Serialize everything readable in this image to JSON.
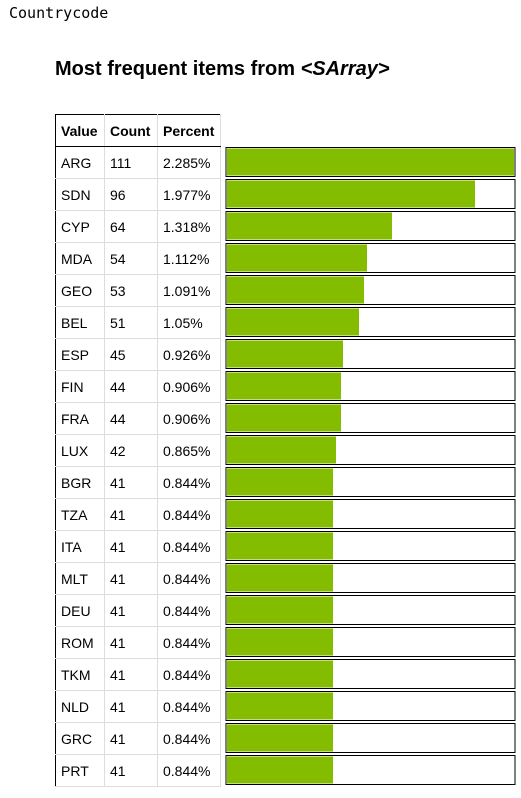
{
  "cell_output_label": "Countrycode",
  "heading": {
    "prefix": "Most frequent items from ",
    "type_name": "<SArray>"
  },
  "columns": {
    "value": "Value",
    "count": "Count",
    "percent": "Percent"
  },
  "bar_color": "#84bc00",
  "chart_data": {
    "type": "table",
    "columns": [
      "Value",
      "Count",
      "Percent"
    ],
    "rows": [
      {
        "value": "ARG",
        "count": 111,
        "percent": "2.285%"
      },
      {
        "value": "SDN",
        "count": 96,
        "percent": "1.977%"
      },
      {
        "value": "CYP",
        "count": 64,
        "percent": "1.318%"
      },
      {
        "value": "MDA",
        "count": 54,
        "percent": "1.112%"
      },
      {
        "value": "GEO",
        "count": 53,
        "percent": "1.091%"
      },
      {
        "value": "BEL",
        "count": 51,
        "percent": "1.05%"
      },
      {
        "value": "ESP",
        "count": 45,
        "percent": "0.926%"
      },
      {
        "value": "FIN",
        "count": 44,
        "percent": "0.906%"
      },
      {
        "value": "FRA",
        "count": 44,
        "percent": "0.906%"
      },
      {
        "value": "LUX",
        "count": 42,
        "percent": "0.865%"
      },
      {
        "value": "BGR",
        "count": 41,
        "percent": "0.844%"
      },
      {
        "value": "TZA",
        "count": 41,
        "percent": "0.844%"
      },
      {
        "value": "ITA",
        "count": 41,
        "percent": "0.844%"
      },
      {
        "value": "MLT",
        "count": 41,
        "percent": "0.844%"
      },
      {
        "value": "DEU",
        "count": 41,
        "percent": "0.844%"
      },
      {
        "value": "ROM",
        "count": 41,
        "percent": "0.844%"
      },
      {
        "value": "TKM",
        "count": 41,
        "percent": "0.844%"
      },
      {
        "value": "NLD",
        "count": 41,
        "percent": "0.844%"
      },
      {
        "value": "GRC",
        "count": 41,
        "percent": "0.844%"
      },
      {
        "value": "PRT",
        "count": 41,
        "percent": "0.844%"
      }
    ]
  }
}
